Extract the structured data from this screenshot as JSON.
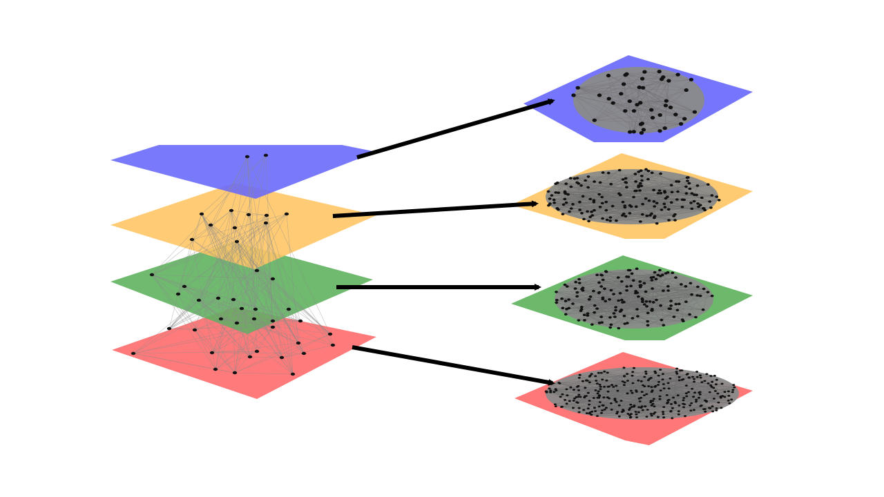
{
  "diagram": {
    "colors": {
      "blue": "#6a6afc",
      "orange": "#ffc766",
      "green": "#5fb35f",
      "red": "#ff6b6b",
      "edge": "#8a8a8a",
      "node": "#111111",
      "arrow": "#000000",
      "background": "#ffffff"
    },
    "layers": [
      {
        "name": "blue-layer",
        "color_key": "blue"
      },
      {
        "name": "orange-layer",
        "color_key": "orange"
      },
      {
        "name": "green-layer",
        "color_key": "green"
      },
      {
        "name": "red-layer",
        "color_key": "red"
      }
    ],
    "detail_panels": [
      {
        "name": "blue-network-panel",
        "color_key": "blue",
        "node_count": 45,
        "density": "medium"
      },
      {
        "name": "orange-network-panel",
        "color_key": "orange",
        "node_count": 170,
        "density": "high"
      },
      {
        "name": "green-network-panel",
        "color_key": "green",
        "node_count": 160,
        "density": "high"
      },
      {
        "name": "red-network-panel",
        "color_key": "red",
        "node_count": 320,
        "density": "very-high"
      }
    ],
    "arrows": [
      {
        "from": "blue-layer",
        "to": "blue-network-panel"
      },
      {
        "from": "orange-layer",
        "to": "orange-network-panel"
      },
      {
        "from": "green-layer",
        "to": "green-network-panel"
      },
      {
        "from": "red-layer",
        "to": "red-network-panel"
      }
    ]
  }
}
